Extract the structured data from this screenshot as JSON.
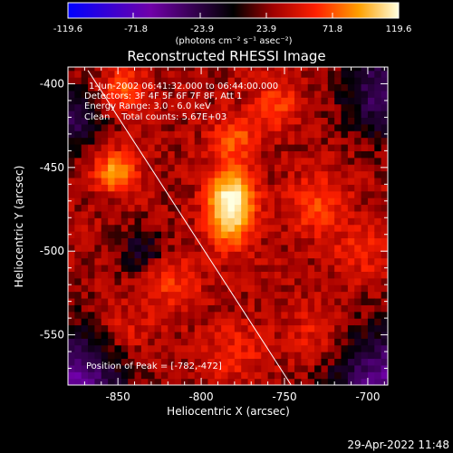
{
  "chart_data": {
    "type": "heatmap",
    "title": "Reconstructed RHESSI Image",
    "xlabel": "Heliocentric X (arcsec)",
    "ylabel": "Heliocentric Y (arcsec)",
    "xlim": [
      -880,
      -688
    ],
    "ylim": [
      -580,
      -390
    ],
    "x_ticks": [
      "-850",
      "-800",
      "-750",
      "-700"
    ],
    "x_tick_values": [
      -850,
      -800,
      -750,
      -700
    ],
    "y_ticks": [
      "-400",
      "-450",
      "-500",
      "-550"
    ],
    "y_tick_values": [
      -400,
      -450,
      -500,
      -550
    ],
    "colorbar": {
      "min": -119.6,
      "max": 119.6,
      "tick_labels": [
        "-119.6",
        "-71.8",
        "-23.9",
        "23.9",
        "71.8",
        "119.6"
      ],
      "tick_values": [
        -119.6,
        -71.8,
        -23.9,
        23.9,
        71.8,
        119.6
      ],
      "unit_label": "(photons cm⁻² s⁻¹ asec⁻²)"
    },
    "annotations": [
      "1-Jun-2002 06:41:32.000 to 06:44:00.000",
      "Detectors: 3F 4F 5F 6F 7F 8F, Att 1",
      "Energy Range: 3.0 - 6.0 keV",
      "Clean    Total counts: 5.67E+03"
    ],
    "peak_label": "Position of Peak = [-782,-472]",
    "peak": {
      "x": -782,
      "y": -472,
      "value": 119.6
    },
    "limb_line": [
      [
        -868,
        -392
      ],
      [
        -746,
        -580
      ]
    ],
    "sources": [
      {
        "x": -782,
        "y": -472,
        "value": 119,
        "sigma": 9
      },
      {
        "x": -851,
        "y": -452,
        "value": 70,
        "sigma": 8
      },
      {
        "x": -847,
        "y": -404,
        "value": 48,
        "sigma": 9
      },
      {
        "x": -780,
        "y": -432,
        "value": 45,
        "sigma": 9
      },
      {
        "x": -755,
        "y": -412,
        "value": 38,
        "sigma": 10
      },
      {
        "x": -818,
        "y": -518,
        "value": 35,
        "sigma": 12
      },
      {
        "x": -730,
        "y": -472,
        "value": 40,
        "sigma": 12
      },
      {
        "x": -705,
        "y": -500,
        "value": 32,
        "sigma": 10
      },
      {
        "x": -780,
        "y": -560,
        "value": 30,
        "sigma": 12
      },
      {
        "x": -730,
        "y": -550,
        "value": 28,
        "sigma": 12
      },
      {
        "x": -845,
        "y": -548,
        "value": 25,
        "sigma": 12
      }
    ],
    "background_regions": [
      {
        "x": -880,
        "y": -580,
        "value": -75,
        "sigma": 22
      },
      {
        "x": -688,
        "y": -580,
        "value": -70,
        "sigma": 22
      },
      {
        "x": -688,
        "y": -405,
        "value": -55,
        "sigma": 18
      },
      {
        "x": -880,
        "y": -420,
        "value": -45,
        "sigma": 14
      },
      {
        "x": -835,
        "y": -500,
        "value": -30,
        "sigma": 10
      }
    ],
    "grid": false
  },
  "timestamp": "29-Apr-2022 11:48"
}
